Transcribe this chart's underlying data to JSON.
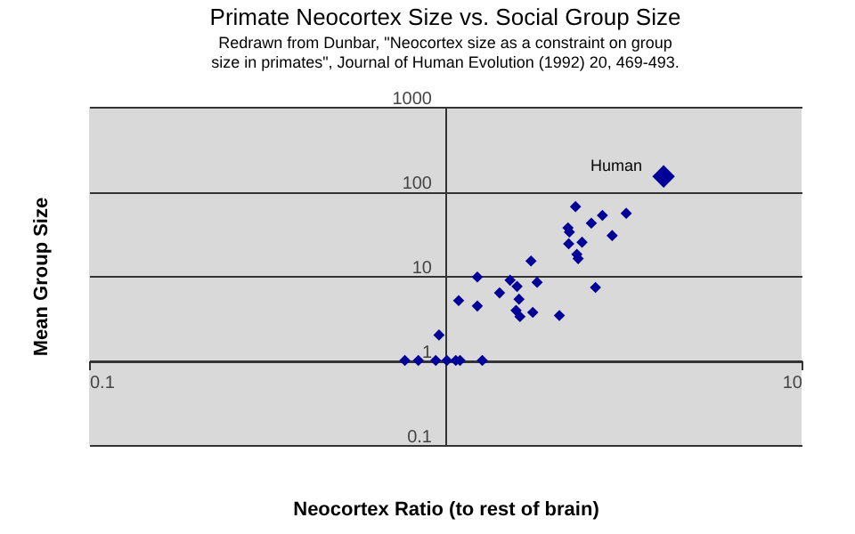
{
  "chart_data": {
    "type": "scatter",
    "title": "Primate Neocortex Size vs. Social Group Size",
    "subtitle": "Redrawn from Dunbar, \"Neocortex size as a constraint on group size in primates\", Journal of Human Evolution (1992) 20, 469-493.",
    "xlabel": "Neocortex Ratio (to rest of brain)",
    "ylabel": "Mean Group Size",
    "series": [
      {
        "color": "#000099",
        "x": [
          2.32,
          2.76,
          3.22,
          2.57,
          2.21,
          2.23,
          2.94,
          2.22,
          2.42,
          2.34,
          2.36,
          1.74,
          1.23,
          1.52,
          1.59,
          1.81,
          2.64,
          1.09,
          1.23,
          1.42,
          1.61,
          1.58,
          1.62,
          1.76,
          2.09,
          0.96,
          0.77,
          0.84,
          0.94,
          1.01,
          1.07,
          1.1,
          1.27
        ],
        "values": [
          66,
          52,
          55,
          42,
          37,
          33,
          30,
          24,
          25,
          18,
          16,
          15,
          9.7,
          8.9,
          7.5,
          8.4,
          7.3,
          5.1,
          4.4,
          6.3,
          5.3,
          3.9,
          3.3,
          3.7,
          3.4,
          2,
          1,
          1,
          1,
          1,
          1,
          1,
          1
        ]
      },
      {
        "color": "#000099",
        "x": [
          4.1
        ],
        "values": [
          150
        ]
      }
    ],
    "annotations": [
      {
        "text": "Human",
        "x": 4.1,
        "y": 150
      }
    ],
    "log": "xy",
    "xlim": [
      0.1,
      10
    ],
    "xticks": [
      0.1,
      10
    ],
    "ylim": [
      0.1,
      1000
    ],
    "yticks": [
      0.1,
      1,
      10,
      100,
      1000
    ],
    "grid": "y",
    "marker": "diamond"
  }
}
